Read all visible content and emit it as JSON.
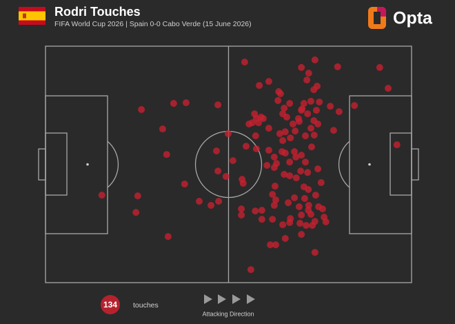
{
  "chart_data": {
    "type": "scatter",
    "title": "Rodri Touches",
    "subtitle": "FIFA World Cup 2026 | Spain 0-0 Cabo Verde (15 June 2026)",
    "brand": "Opta",
    "total": 134,
    "total_label": "touches",
    "direction_label": "Attacking Direction",
    "color": "#c8202f",
    "xlim": [
      0,
      100
    ],
    "ylim": [
      100,
      0
    ],
    "x": [
      15.4,
      26.2,
      32.0,
      33.1,
      35.0,
      38.4,
      38.0,
      25.2,
      24.7,
      33.5,
      42.0,
      45.2,
      47.3,
      47.1,
      46.7,
      47.1,
      49.9,
      49.3,
      51.2,
      54.4,
      54.8,
      53.7,
      54.0,
      57.6,
      58.4,
      61.0,
      63.7,
      64.2,
      63.5,
      65.2,
      64.8,
      66.7,
      57.1,
      57.6,
      56.5,
      58.2,
      59.5,
      61.0,
      61.0,
      60.5,
      62.5,
      63.1,
      64.6,
      65.5,
      64.0,
      65.5,
      68.2,
      67.6,
      69.9,
      69.1,
      70.1,
      70.6,
      71.6,
      72.5,
      73.3,
      74.2,
      71.9,
      71.4,
      69.9,
      73.6,
      79.8,
      91.3,
      93.6,
      84.4,
      80.2,
      77.8,
      74.8,
      74.0,
      73.3,
      72.5,
      74.4,
      78.7,
      71.0,
      69.9,
      72.7,
      68.0,
      66.7,
      68.4,
      71.0,
      69.7,
      66.7,
      65.2,
      62.7,
      62.0,
      62.9,
      68.5,
      71.6,
      74.4,
      75.3,
      71.8,
      70.8,
      73.8,
      75.7,
      71.8,
      69.3,
      69.9,
      72.5,
      73.6,
      76.6,
      72.9,
      71.2,
      69.5,
      66.7,
      64.8,
      66.3,
      62.5,
      62.0,
      59.1,
      57.3,
      53.5,
      53.5,
      69.9,
      65.5,
      61.4,
      62.9,
      73.6,
      56.1,
      96.0,
      64.8,
      69.3,
      66.9,
      58.9,
      57.4,
      55.6,
      71.9,
      74.6,
      68.0,
      59.1,
      65.9,
      73.4,
      62.5,
      70.6,
      76.1,
      66.9
    ],
    "values": [
      63.0,
      26.8,
      35.0,
      45.8,
      24.2,
      23.9,
      58.3,
      63.3,
      70.3,
      80.5,
      65.6,
      67.3,
      65.6,
      24.8,
      44.3,
      52.8,
      37.0,
      55.1,
      48.4,
      6.7,
      42.3,
      56.3,
      58.0,
      43.4,
      16.6,
      14.9,
      19.2,
      20.1,
      23.0,
      26.2,
      28.6,
      24.2,
      28.6,
      30.6,
      32.4,
      32.4,
      30.6,
      34.7,
      44.0,
      50.4,
      51.3,
      49.6,
      44.6,
      45.2,
      37.0,
      36.2,
      35.9,
      32.9,
      27.1,
      30.6,
      26.5,
      24.2,
      28.6,
      23.3,
      18.4,
      16.9,
      11.4,
      14.3,
      9.0,
      5.8,
      8.7,
      9.0,
      17.8,
      25.1,
      27.7,
      25.4,
      23.6,
      27.1,
      31.5,
      34.7,
      32.9,
      35.6,
      37.9,
      46.1,
      42.6,
      44.6,
      49.0,
      46.9,
      49.0,
      52.8,
      54.8,
      54.2,
      59.2,
      62.7,
      65.0,
      55.7,
      53.4,
      51.9,
      57.7,
      60.6,
      64.4,
      63.0,
      68.8,
      69.4,
      67.9,
      71.4,
      71.1,
      74.1,
      74.3,
      75.8,
      75.8,
      74.9,
      74.6,
      75.5,
      66.2,
      67.3,
      73.2,
      73.2,
      69.7,
      68.8,
      71.4,
      79.6,
      81.3,
      84.0,
      84.0,
      87.2,
      94.5,
      41.7,
      39.9,
      31.8,
      38.8,
      30.0,
      37.9,
      32.9,
      67.3,
      67.9,
      64.1,
      69.4,
      30.0,
      37.6,
      46.9,
      59.5,
      72.3,
      72.9
    ]
  }
}
